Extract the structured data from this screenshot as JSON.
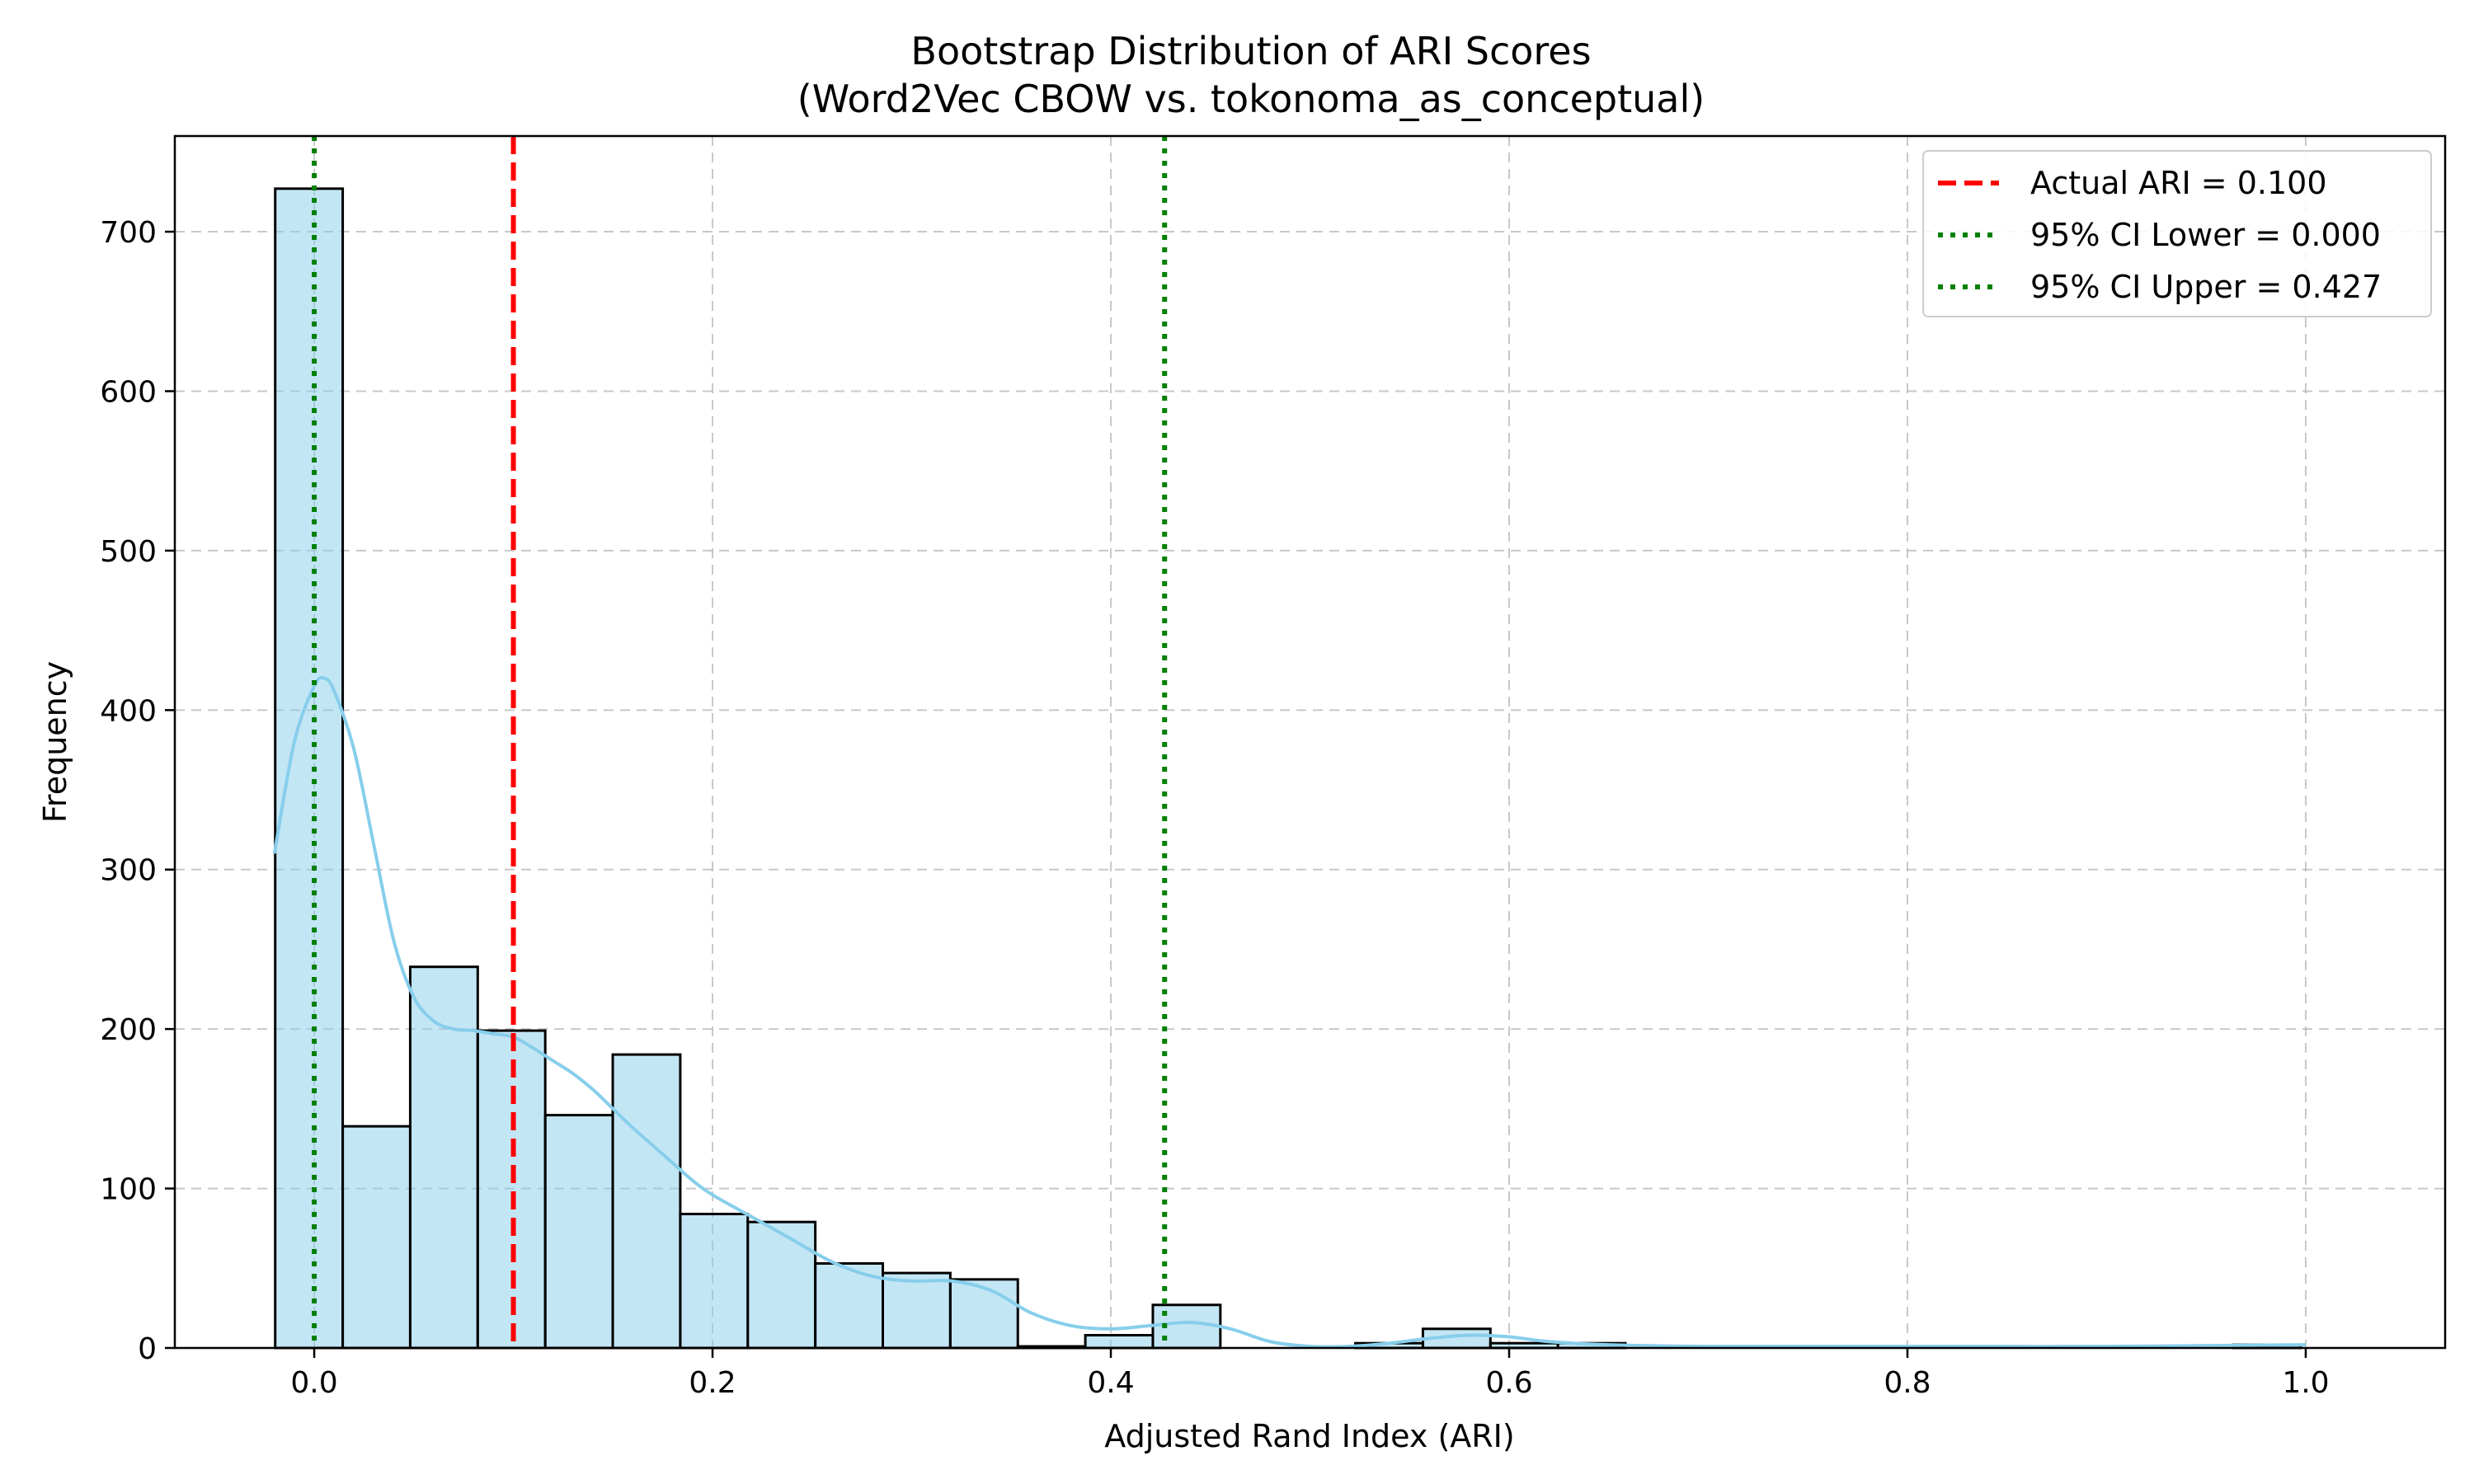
{
  "chart_data": {
    "type": "bar",
    "title": "Bootstrap Distribution of ARI Scores",
    "subtitle": "(Word2Vec CBOW vs. tokonoma_as_conceptual)",
    "xlabel": "Adjusted Rand Index (ARI)",
    "ylabel": "Frequency",
    "xlim": [
      -0.07,
      1.07
    ],
    "ylim": [
      0,
      760
    ],
    "xticks": [
      0.0,
      0.2,
      0.4,
      0.6,
      0.8,
      1.0
    ],
    "xtick_labels": [
      "0.0",
      "0.2",
      "0.4",
      "0.6",
      "0.8",
      "1.0"
    ],
    "yticks": [
      0,
      100,
      200,
      300,
      400,
      500,
      600,
      700
    ],
    "ytick_labels": [
      "0",
      "100",
      "200",
      "300",
      "400",
      "500",
      "600",
      "700"
    ],
    "grid": true,
    "bin_start": -0.0196,
    "bin_width": 0.0339,
    "bin_counts": [
      727,
      139,
      239,
      199,
      146,
      184,
      84,
      79,
      53,
      47,
      43,
      1,
      8,
      27,
      0,
      0,
      3,
      12,
      3,
      3,
      0,
      0,
      0,
      0,
      0,
      0,
      0,
      0,
      0,
      2
    ],
    "bar_fill": "#87ceeb",
    "bar_fill_opacity": 0.5,
    "bar_edge": "#000000",
    "kde": {
      "color": "#87ceeb",
      "x": [
        -0.02,
        -0.01,
        0.0,
        0.005,
        0.01,
        0.02,
        0.03,
        0.04,
        0.05,
        0.06,
        0.07,
        0.08,
        0.09,
        0.1,
        0.11,
        0.12,
        0.13,
        0.14,
        0.15,
        0.16,
        0.17,
        0.18,
        0.19,
        0.2,
        0.22,
        0.24,
        0.26,
        0.28,
        0.3,
        0.32,
        0.34,
        0.36,
        0.38,
        0.4,
        0.42,
        0.44,
        0.46,
        0.48,
        0.5,
        0.52,
        0.54,
        0.56,
        0.58,
        0.6,
        0.62,
        0.65,
        0.7,
        0.8,
        0.9,
        1.0
      ],
      "y": [
        310,
        380,
        415,
        420,
        412,
        375,
        315,
        255,
        220,
        205,
        200,
        199,
        197,
        195,
        188,
        180,
        172,
        162,
        150,
        138,
        127,
        116,
        105,
        96,
        82,
        68,
        54,
        45,
        42,
        42,
        36,
        22,
        14,
        12,
        14,
        16,
        12,
        4,
        1,
        1,
        3,
        6,
        8,
        7,
        4,
        2,
        1,
        1,
        1,
        2
      ]
    },
    "vlines": [
      {
        "label": "Actual ARI = 0.100",
        "x": 0.1,
        "color": "#ff0000",
        "style": "dashed"
      },
      {
        "label": "95% CI Lower = 0.000",
        "x": 0.0,
        "color": "#008000",
        "style": "dotted"
      },
      {
        "label": "95% CI Upper = 0.427",
        "x": 0.427,
        "color": "#008000",
        "style": "dotted"
      }
    ],
    "legend_position": "top-right"
  }
}
